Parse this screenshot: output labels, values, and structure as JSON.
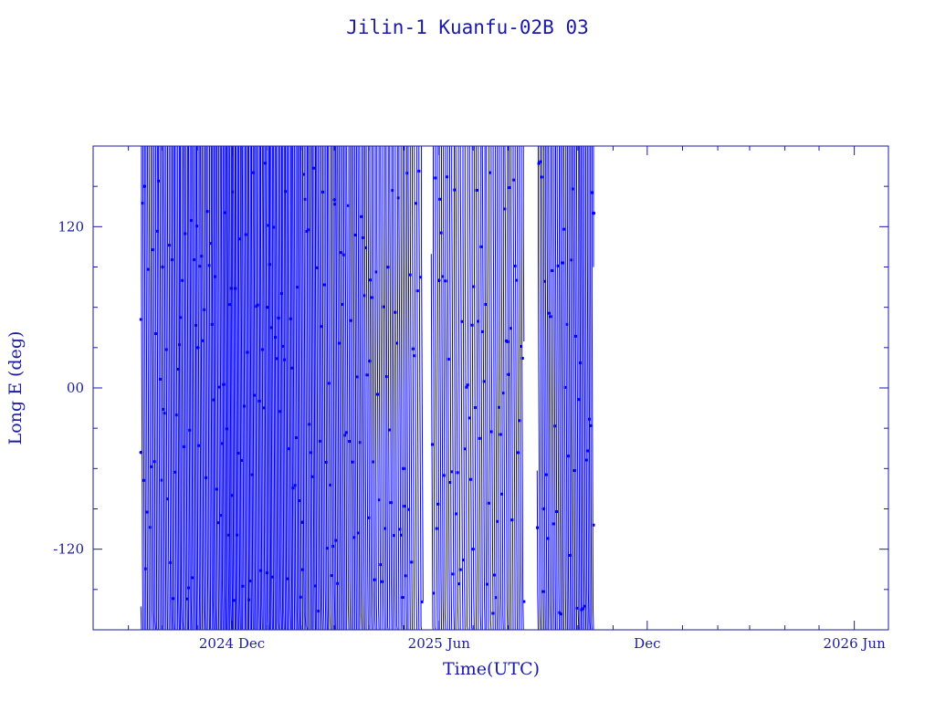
{
  "chart_data": {
    "type": "line",
    "title": "Jilin-1 Kuanfu-02B 03",
    "xlabel": "Time(UTC)",
    "ylabel": "Long E (deg)",
    "x_ticks": [
      "2024 Dec",
      "2025 Jun",
      "Dec",
      "2026 Jun"
    ],
    "y_ticks": [
      "120",
      "00",
      "-120"
    ],
    "ylim": [
      -180,
      180
    ],
    "xlim": [
      "2024-08-01",
      "2026-07-01"
    ],
    "data_range": [
      "2024-09-12",
      "2025-10-15"
    ],
    "grid": false,
    "series": [
      {
        "color": "#0000ff",
        "description_points": [
          {
            "x": "2024-09-12",
            "y": -48
          },
          {
            "x": "2024-09-15",
            "y": 150
          },
          {
            "x": "2024-10-01",
            "y": 90
          },
          {
            "x": "2024-11-01",
            "y": 30
          },
          {
            "x": "2024-12-01",
            "y": -80
          },
          {
            "x": "2025-01-01",
            "y": 60
          },
          {
            "x": "2025-02-01",
            "y": -100
          },
          {
            "x": "2025-03-01",
            "y": 140
          },
          {
            "x": "2025-04-01",
            "y": 20
          },
          {
            "x": "2025-05-01",
            "y": -60
          },
          {
            "x": "2025-06-01",
            "y": 80
          },
          {
            "x": "2025-07-01",
            "y": -120
          },
          {
            "x": "2025-08-01",
            "y": 10
          },
          {
            "x": "2025-09-01",
            "y": -90
          },
          {
            "x": "2025-10-15",
            "y": 130
          }
        ]
      }
    ]
  }
}
